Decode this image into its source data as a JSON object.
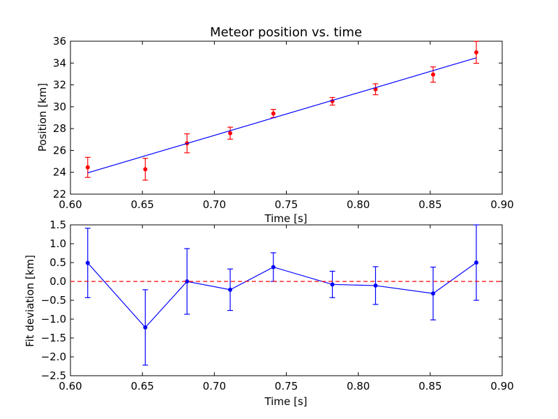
{
  "chart_data": [
    {
      "type": "scatter",
      "title": "Meteor position vs. time",
      "xlabel": "Time [s]",
      "ylabel": "Position [km]",
      "xlim": [
        0.6,
        0.9
      ],
      "ylim": [
        22,
        36
      ],
      "xticks": [
        "0.60",
        "0.65",
        "0.70",
        "0.75",
        "0.80",
        "0.85",
        "0.90"
      ],
      "yticks": [
        "22",
        "24",
        "26",
        "28",
        "30",
        "32",
        "34",
        "36"
      ],
      "grid": false,
      "series": [
        {
          "kind": "errorbar-points",
          "color": "#ff0000",
          "x": [
            0.612,
            0.652,
            0.681,
            0.711,
            0.741,
            0.782,
            0.812,
            0.852,
            0.882
          ],
          "y": [
            24.45,
            24.28,
            26.65,
            27.58,
            29.38,
            30.5,
            31.6,
            32.95,
            34.98
          ],
          "yerr": [
            0.92,
            1.0,
            0.87,
            0.55,
            0.38,
            0.35,
            0.5,
            0.7,
            1.0
          ]
        },
        {
          "kind": "fit-line",
          "color": "#0000ff",
          "x": [
            0.612,
            0.882
          ],
          "y": [
            23.95,
            34.48
          ]
        }
      ]
    },
    {
      "type": "line",
      "title": "",
      "xlabel": "Time [s]",
      "ylabel": "Fit deviation [km]",
      "xlim": [
        0.6,
        0.9
      ],
      "ylim": [
        -2.5,
        1.5
      ],
      "xticks": [
        "0.60",
        "0.65",
        "0.70",
        "0.75",
        "0.80",
        "0.85",
        "0.90"
      ],
      "yticks": [
        "−2.5",
        "−2.0",
        "−1.5",
        "−1.0",
        "−0.5",
        "0.0",
        "0.5",
        "1.0",
        "1.5"
      ],
      "grid": false,
      "series": [
        {
          "kind": "errorbar-line",
          "color": "#0000ff",
          "x": [
            0.612,
            0.652,
            0.681,
            0.711,
            0.741,
            0.782,
            0.812,
            0.852,
            0.882
          ],
          "y": [
            0.49,
            -1.22,
            0.0,
            -0.22,
            0.38,
            -0.08,
            -0.11,
            -0.32,
            0.5
          ],
          "yerr": [
            0.92,
            1.0,
            0.87,
            0.55,
            0.38,
            0.35,
            0.5,
            0.7,
            1.0
          ]
        },
        {
          "kind": "reference-line",
          "color": "#ff0000",
          "dashed": true,
          "y": 0.0
        }
      ]
    }
  ]
}
